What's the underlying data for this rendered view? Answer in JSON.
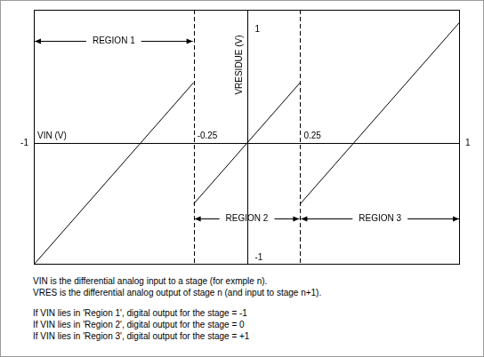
{
  "chart_data": {
    "type": "line",
    "x": [
      -1,
      -0.25,
      -0.25,
      -0.25,
      0.25,
      0.25,
      0.25,
      1
    ],
    "values": [
      -1,
      0.5,
      null,
      -0.5,
      0.5,
      null,
      -0.5,
      1
    ],
    "color": "#000000",
    "xlabel": "VIN (V)",
    "ylabel": "VRESIDUE (V)",
    "xlim": [
      -1,
      1
    ],
    "ylim": [
      -1,
      1.1
    ],
    "xticks": [
      -1,
      -0.25,
      0.25,
      1
    ],
    "yticks": [
      -1,
      1
    ],
    "grid": false,
    "regions": [
      {
        "label": "REGION 1",
        "from": -1,
        "to": -0.25
      },
      {
        "label": "REGION 2",
        "from": -0.25,
        "to": 0.25
      },
      {
        "label": "REGION 3",
        "from": 0.25,
        "to": 1
      }
    ],
    "notes": [
      [
        "VIN is the differential analog input to a stage (for exmple n).",
        "VRES is the differential analog output of stage n (and input to stage n+1)."
      ],
      [
        "If VIN lies in 'Region 1', digital output for the stage = -1",
        "If VIN lies in 'Region 2', digital output for the stage = 0",
        "If VIN lies in 'Region 3', digital output for the stage = +1"
      ]
    ]
  }
}
